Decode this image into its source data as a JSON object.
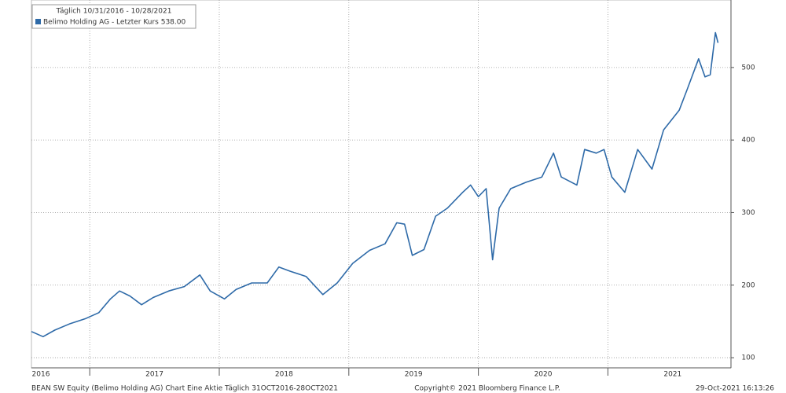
{
  "chart_data": {
    "type": "line",
    "legend_title": "Täglich 10/31/2016 - 10/28/2021",
    "footer_left": "BEAN SW Equity (Belimo Holding AG) Chart Eine Aktie  Täglich 31OCT2016-28OCT2021",
    "footer_center": "Copyright© 2021 Bloomberg Finance L.P.",
    "footer_right": "29-Oct-2021 16:13:26",
    "legend": "top-left",
    "grid": true,
    "xlim": [
      2016.55,
      2021.95
    ],
    "xticks": [
      2016,
      2017,
      2018,
      2019,
      2020,
      2021
    ],
    "ylim": [
      86,
      593
    ],
    "yticks": [
      100,
      200,
      300,
      400,
      500
    ],
    "x": [
      2016.55,
      2016.64,
      2016.73,
      2016.85,
      2016.97,
      2017.07,
      2017.16,
      2017.23,
      2017.31,
      2017.4,
      2017.49,
      2017.61,
      2017.73,
      2017.85,
      2017.93,
      2018.04,
      2018.13,
      2018.25,
      2018.37,
      2018.46,
      2018.55,
      2018.67,
      2018.8,
      2018.91,
      2019.03,
      2019.16,
      2019.28,
      2019.37,
      2019.43,
      2019.49,
      2019.58,
      2019.67,
      2019.76,
      2019.88,
      2019.94,
      2020.0,
      2020.06,
      2020.11,
      2020.16,
      2020.25,
      2020.37,
      2020.49,
      2020.58,
      2020.64,
      2020.76,
      2020.82,
      2020.91,
      2020.97,
      2021.03,
      2021.13,
      2021.23,
      2021.34,
      2021.43,
      2021.55,
      2021.61,
      2021.7,
      2021.75,
      2021.79,
      2021.83,
      2021.85
    ],
    "series": [
      {
        "name": "Belimo Holding AG - Letzter Kurs 538.00",
        "color": "#2e6aa8",
        "values": [
          136,
          129,
          138,
          147,
          154,
          162,
          181,
          192,
          185,
          173,
          183,
          192,
          198,
          214,
          192,
          181,
          194,
          203,
          203,
          225,
          219,
          212,
          187,
          203,
          230,
          248,
          257,
          286,
          284,
          241,
          249,
          295,
          306,
          328,
          338,
          322,
          333,
          235,
          306,
          333,
          342,
          349,
          382,
          349,
          338,
          387,
          382,
          387,
          349,
          328,
          387,
          360,
          414,
          441,
          469,
          512,
          487,
          490,
          548,
          534
        ]
      }
    ]
  }
}
